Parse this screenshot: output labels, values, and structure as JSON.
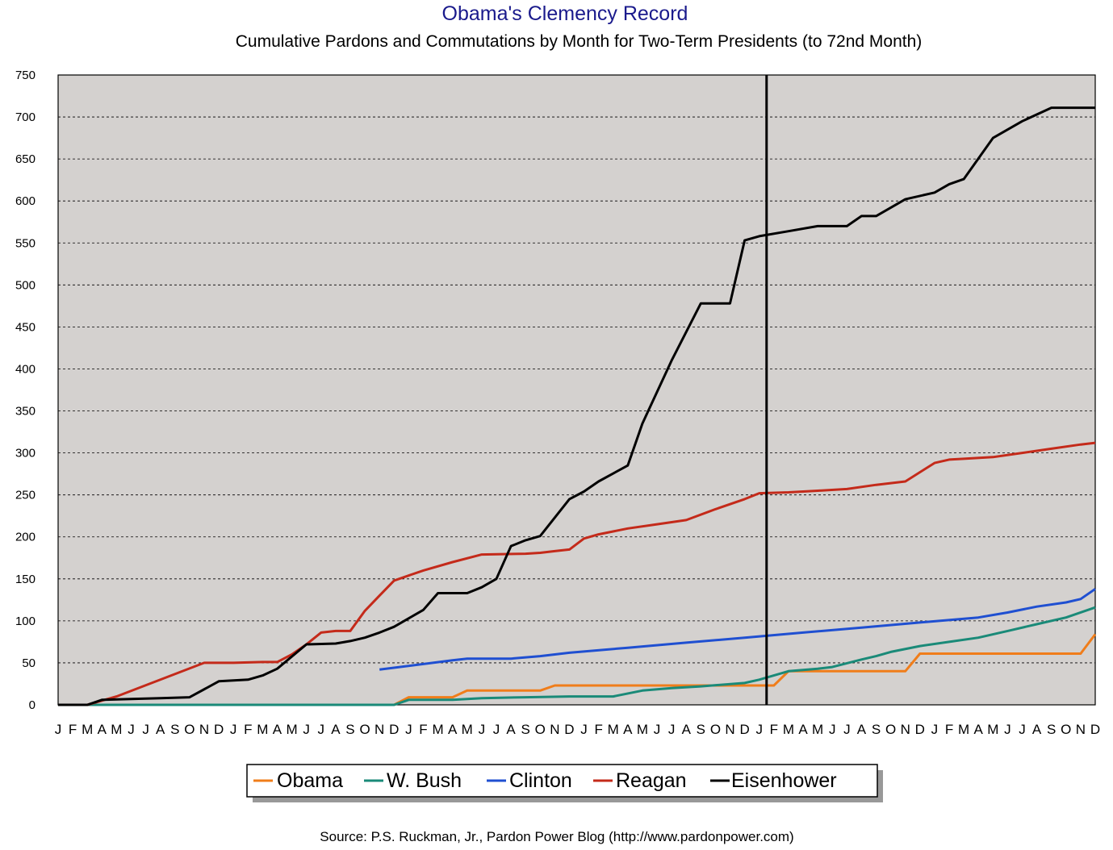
{
  "chart_data": {
    "type": "line",
    "title": "Obama's Clemency Record",
    "subtitle": "Cumulative Pardons and Commutations by Month for Two-Term Presidents (to 72nd Month)",
    "source": "Source: P.S. Ruckman, Jr., Pardon Power Blog (http://www.pardonpower.com)",
    "ylim": [
      0,
      750
    ],
    "yticks": [
      0,
      50,
      100,
      150,
      200,
      250,
      300,
      350,
      400,
      450,
      500,
      550,
      600,
      650,
      700,
      750
    ],
    "xlim": [
      1,
      72
    ],
    "x_tick_labels": [
      "J",
      "F",
      "M",
      "A",
      "M",
      "J",
      "J",
      "A",
      "S",
      "O",
      "N",
      "D",
      "J",
      "F",
      "M",
      "A",
      "M",
      "J",
      "J",
      "A",
      "S",
      "O",
      "N",
      "D",
      "J",
      "F",
      "M",
      "A",
      "M",
      "J",
      "J",
      "A",
      "S",
      "O",
      "N",
      "D",
      "J",
      "F",
      "M",
      "A",
      "M",
      "J",
      "J",
      "A",
      "S",
      "O",
      "N",
      "D",
      "J",
      "F",
      "M",
      "A",
      "M",
      "J",
      "J",
      "A",
      "S",
      "O",
      "N",
      "D",
      "J",
      "F",
      "M",
      "A",
      "M",
      "J",
      "J",
      "A",
      "S",
      "O",
      "N",
      "D"
    ],
    "vertical_marker_x": 49.5,
    "grid": "horizontal dashed",
    "legend_position": "bottom",
    "series": [
      {
        "name": "Obama",
        "color": "#f07d1a",
        "points": [
          [
            1,
            0
          ],
          [
            24,
            0
          ],
          [
            25,
            9
          ],
          [
            28,
            9
          ],
          [
            29,
            17
          ],
          [
            32,
            17
          ],
          [
            34,
            17
          ],
          [
            35,
            23
          ],
          [
            38,
            23
          ],
          [
            40,
            23
          ],
          [
            44,
            23
          ],
          [
            47,
            23
          ],
          [
            50,
            23
          ],
          [
            51,
            40
          ],
          [
            52,
            40
          ],
          [
            54,
            40
          ],
          [
            56,
            40
          ],
          [
            58,
            40
          ],
          [
            59,
            40
          ],
          [
            60,
            61
          ],
          [
            61,
            61
          ],
          [
            63,
            61
          ],
          [
            64,
            61
          ],
          [
            66,
            61
          ],
          [
            68,
            61
          ],
          [
            70,
            61
          ],
          [
            71,
            61
          ],
          [
            72,
            84
          ]
        ]
      },
      {
        "name": "W. Bush",
        "color": "#1a8a78",
        "points": [
          [
            1,
            0
          ],
          [
            24,
            0
          ],
          [
            25,
            6
          ],
          [
            28,
            6
          ],
          [
            30,
            8
          ],
          [
            33,
            9
          ],
          [
            36,
            10
          ],
          [
            38,
            10
          ],
          [
            39,
            10
          ],
          [
            41,
            17
          ],
          [
            43,
            20
          ],
          [
            45,
            22
          ],
          [
            48,
            26
          ],
          [
            49,
            30
          ],
          [
            50,
            35
          ],
          [
            51,
            40
          ],
          [
            53,
            43
          ],
          [
            54,
            45
          ],
          [
            56,
            54
          ],
          [
            57,
            58
          ],
          [
            58,
            63
          ],
          [
            60,
            70
          ],
          [
            62,
            75
          ],
          [
            64,
            80
          ],
          [
            66,
            88
          ],
          [
            68,
            96
          ],
          [
            70,
            104
          ],
          [
            72,
            116
          ]
        ]
      },
      {
        "name": "Clinton",
        "color": "#1f4fd1",
        "points": [
          [
            23,
            42
          ],
          [
            28,
            53
          ],
          [
            29,
            55
          ],
          [
            32,
            55
          ],
          [
            34,
            58
          ],
          [
            36,
            62
          ],
          [
            40,
            68
          ],
          [
            44,
            74
          ],
          [
            48,
            80
          ],
          [
            52,
            86
          ],
          [
            56,
            92
          ],
          [
            60,
            98
          ],
          [
            64,
            104
          ],
          [
            66,
            110
          ],
          [
            68,
            117
          ],
          [
            70,
            122
          ],
          [
            71,
            126
          ],
          [
            72,
            138
          ]
        ]
      },
      {
        "name": "Reagan",
        "color": "#c42a1a",
        "points": [
          [
            1,
            0
          ],
          [
            3,
            0
          ],
          [
            5,
            10
          ],
          [
            11,
            50
          ],
          [
            13,
            50
          ],
          [
            15,
            51
          ],
          [
            16,
            51
          ],
          [
            17,
            60
          ],
          [
            18,
            72
          ],
          [
            19,
            86
          ],
          [
            20,
            88
          ],
          [
            21,
            88
          ],
          [
            22,
            112
          ],
          [
            23,
            130
          ],
          [
            24,
            148
          ],
          [
            26,
            160
          ],
          [
            28,
            170
          ],
          [
            30,
            179
          ],
          [
            33,
            180
          ],
          [
            34,
            181
          ],
          [
            35,
            183
          ],
          [
            36,
            185
          ],
          [
            37,
            198
          ],
          [
            38,
            203
          ],
          [
            40,
            210
          ],
          [
            42,
            215
          ],
          [
            44,
            220
          ],
          [
            46,
            233
          ],
          [
            48,
            245
          ],
          [
            49,
            252
          ],
          [
            51,
            253
          ],
          [
            53,
            255
          ],
          [
            55,
            257
          ],
          [
            57,
            262
          ],
          [
            59,
            266
          ],
          [
            61,
            288
          ],
          [
            62,
            292
          ],
          [
            63,
            293
          ],
          [
            65,
            295
          ],
          [
            67,
            300
          ],
          [
            69,
            305
          ],
          [
            71,
            310
          ],
          [
            72,
            312
          ]
        ]
      },
      {
        "name": "Eisenhower",
        "color": "#000000",
        "points": [
          [
            1,
            0
          ],
          [
            3,
            0
          ],
          [
            4,
            6
          ],
          [
            6,
            7
          ],
          [
            8,
            8
          ],
          [
            10,
            9
          ],
          [
            12,
            28
          ],
          [
            14,
            30
          ],
          [
            15,
            35
          ],
          [
            16,
            43
          ],
          [
            18,
            72
          ],
          [
            20,
            73
          ],
          [
            21,
            76
          ],
          [
            22,
            80
          ],
          [
            23,
            86
          ],
          [
            24,
            93
          ],
          [
            26,
            113
          ],
          [
            27,
            133
          ],
          [
            29,
            133
          ],
          [
            30,
            140
          ],
          [
            31,
            150
          ],
          [
            32,
            189
          ],
          [
            33,
            196
          ],
          [
            34,
            201
          ],
          [
            36,
            245
          ],
          [
            37,
            254
          ],
          [
            38,
            266
          ],
          [
            40,
            285
          ],
          [
            41,
            335
          ],
          [
            43,
            410
          ],
          [
            45,
            478
          ],
          [
            47,
            478
          ],
          [
            48,
            553
          ],
          [
            49,
            558
          ],
          [
            51,
            564
          ],
          [
            53,
            570
          ],
          [
            55,
            570
          ],
          [
            56,
            582
          ],
          [
            57,
            582
          ],
          [
            59,
            602
          ],
          [
            61,
            610
          ],
          [
            62,
            620
          ],
          [
            63,
            626
          ],
          [
            65,
            675
          ],
          [
            67,
            695
          ],
          [
            69,
            711
          ],
          [
            70,
            711
          ],
          [
            72,
            711
          ]
        ]
      }
    ]
  }
}
